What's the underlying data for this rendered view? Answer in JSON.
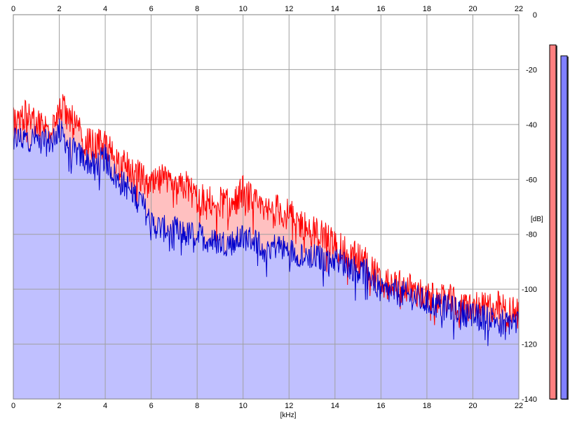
{
  "chart_data": {
    "type": "area",
    "xlabel": "[kHz]",
    "ylabel": "[dB]",
    "xlim": [
      0,
      22
    ],
    "ylim": [
      -140,
      0
    ],
    "x_ticks": [
      0,
      2,
      4,
      6,
      8,
      10,
      12,
      14,
      16,
      18,
      20,
      22
    ],
    "y_ticks": [
      0,
      -20,
      -40,
      -60,
      -80,
      -100,
      -120,
      -140
    ],
    "x_tick_labels": [
      "0",
      "2",
      "4",
      "6",
      "8",
      "10",
      "12",
      "14",
      "16",
      "18",
      "20",
      "22"
    ],
    "y_tick_labels": [
      "0",
      "-20",
      "-40",
      "-60",
      "-80",
      "-100",
      "-120",
      "-140"
    ],
    "grid": true,
    "background_fill_color": "#c0c0ff",
    "x": [
      0,
      0.5,
      1,
      1.5,
      2,
      2.5,
      3,
      3.5,
      4,
      4.5,
      5,
      5.5,
      6,
      6.5,
      7,
      7.5,
      8,
      8.5,
      9,
      9.5,
      10,
      10.5,
      11,
      11.5,
      12,
      12.5,
      13,
      13.5,
      14,
      14.5,
      15,
      15.5,
      16,
      16.5,
      17,
      17.5,
      18,
      18.5,
      19,
      19.5,
      20,
      20.5,
      21,
      21.5,
      22
    ],
    "series": [
      {
        "color": "#ff0000",
        "fill": "#ffc0c0",
        "values": [
          -38,
          -37,
          -39,
          -42,
          -33,
          -38,
          -45,
          -48,
          -47,
          -53,
          -56,
          -59,
          -63,
          -60,
          -65,
          -62,
          -67,
          -68,
          -68,
          -70,
          -64,
          -69,
          -72,
          -71,
          -73,
          -76,
          -79,
          -80,
          -84,
          -87,
          -88,
          -91,
          -98,
          -99,
          -99,
          -101,
          -103,
          -104,
          -104,
          -107,
          -106,
          -107,
          -106,
          -108,
          -109
        ]
      },
      {
        "color": "#0000cc",
        "values": [
          -45,
          -45,
          -45,
          -47,
          -42,
          -49,
          -52,
          -55,
          -52,
          -60,
          -63,
          -67,
          -76,
          -78,
          -78,
          -80,
          -80,
          -82,
          -83,
          -83,
          -81,
          -82,
          -85,
          -84,
          -86,
          -87,
          -88,
          -89,
          -89,
          -91,
          -93,
          -94,
          -101,
          -101,
          -102,
          -103,
          -105,
          -106,
          -107,
          -108,
          -110,
          -110,
          -111,
          -112,
          -112
        ]
      }
    ],
    "level_meters": [
      {
        "color": "#ff8080",
        "value": -11
      },
      {
        "color": "#8080ff",
        "value": -15
      }
    ]
  }
}
